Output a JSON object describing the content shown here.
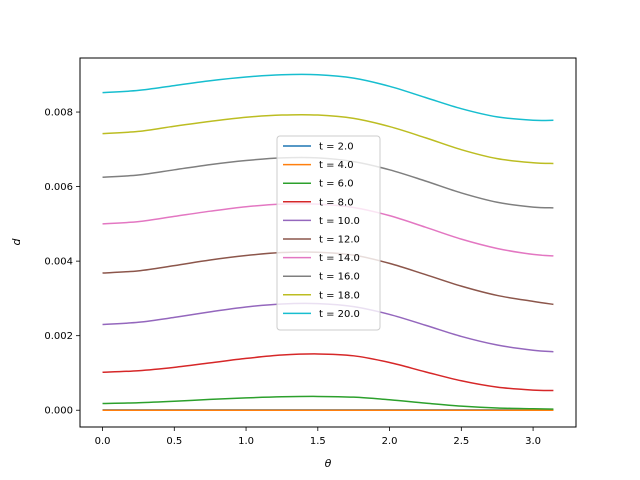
{
  "chart_data": {
    "type": "line",
    "xlabel": "θ",
    "ylabel": "d",
    "xlim": [
      -0.157,
      3.299
    ],
    "ylim": [
      -0.00045,
      0.00945
    ],
    "xticks": [
      0.0,
      0.5,
      1.0,
      1.5,
      2.0,
      2.5,
      3.0
    ],
    "xtick_labels": [
      "0.0",
      "0.5",
      "1.0",
      "1.5",
      "2.0",
      "2.5",
      "3.0"
    ],
    "yticks": [
      0.0,
      0.002,
      0.004,
      0.006,
      0.008
    ],
    "ytick_labels": [
      "0.000",
      "0.002",
      "0.004",
      "0.006",
      "0.008"
    ],
    "grid": false,
    "legend_position": "center",
    "x": [
      0.0,
      0.25,
      0.5,
      0.75,
      1.0,
      1.25,
      1.5,
      1.75,
      2.0,
      2.25,
      2.5,
      2.75,
      3.0,
      3.14159
    ],
    "series": [
      {
        "name": "t = 2.0",
        "color": "#1f77b4",
        "values": [
          1e-05,
          1e-05,
          1e-05,
          1e-05,
          1e-05,
          1e-05,
          1e-05,
          1e-05,
          1e-05,
          1e-05,
          1e-05,
          1e-05,
          1e-05,
          1e-05
        ]
      },
      {
        "name": "t = 4.0",
        "color": "#ff7f0e",
        "values": [
          0.0,
          0.0,
          0.0,
          0.0,
          0.0,
          0.0,
          0.0,
          0.0,
          0.0,
          0.0,
          0.0,
          0.0,
          0.0,
          0.0
        ]
      },
      {
        "name": "t = 6.0",
        "color": "#2ca02c",
        "values": [
          0.00018,
          0.0002,
          0.00024,
          0.00029,
          0.00033,
          0.00036,
          0.00037,
          0.00035,
          0.00028,
          0.00019,
          0.00011,
          6e-05,
          4e-05,
          3e-05
        ]
      },
      {
        "name": "t = 8.0",
        "color": "#d62728",
        "values": [
          0.00102,
          0.00106,
          0.00115,
          0.00127,
          0.00139,
          0.00148,
          0.00151,
          0.00146,
          0.00128,
          0.00103,
          0.00079,
          0.00062,
          0.00054,
          0.00053
        ]
      },
      {
        "name": "t = 10.0",
        "color": "#9467bd",
        "values": [
          0.0023,
          0.00236,
          0.00249,
          0.00264,
          0.00277,
          0.00285,
          0.00286,
          0.00278,
          0.00257,
          0.00228,
          0.00198,
          0.00175,
          0.00161,
          0.00157
        ]
      },
      {
        "name": "t = 12.0",
        "color": "#8c564b",
        "values": [
          0.00368,
          0.00374,
          0.00388,
          0.00403,
          0.00415,
          0.00423,
          0.00424,
          0.00416,
          0.00394,
          0.00364,
          0.00333,
          0.00308,
          0.00292,
          0.00284
        ]
      },
      {
        "name": "t = 14.0",
        "color": "#e377c2",
        "values": [
          0.005,
          0.00506,
          0.0052,
          0.00534,
          0.00546,
          0.00553,
          0.00553,
          0.00544,
          0.00522,
          0.00491,
          0.00459,
          0.00434,
          0.00418,
          0.00414
        ]
      },
      {
        "name": "t = 16.0",
        "color": "#7f7f7f",
        "values": [
          0.00625,
          0.00631,
          0.00645,
          0.00659,
          0.0067,
          0.00677,
          0.00677,
          0.00667,
          0.00645,
          0.00615,
          0.00583,
          0.00558,
          0.00545,
          0.00543
        ]
      },
      {
        "name": "t = 18.0",
        "color": "#bcbd22",
        "values": [
          0.00742,
          0.00748,
          0.00762,
          0.00775,
          0.00786,
          0.00792,
          0.00792,
          0.00783,
          0.00761,
          0.00731,
          0.00699,
          0.00675,
          0.00664,
          0.00662
        ]
      },
      {
        "name": "t = 20.0",
        "color": "#17becf",
        "values": [
          0.00852,
          0.00858,
          0.00871,
          0.00884,
          0.00894,
          0.009,
          0.009,
          0.00891,
          0.00869,
          0.00839,
          0.00809,
          0.00787,
          0.00778,
          0.00778
        ]
      }
    ]
  }
}
